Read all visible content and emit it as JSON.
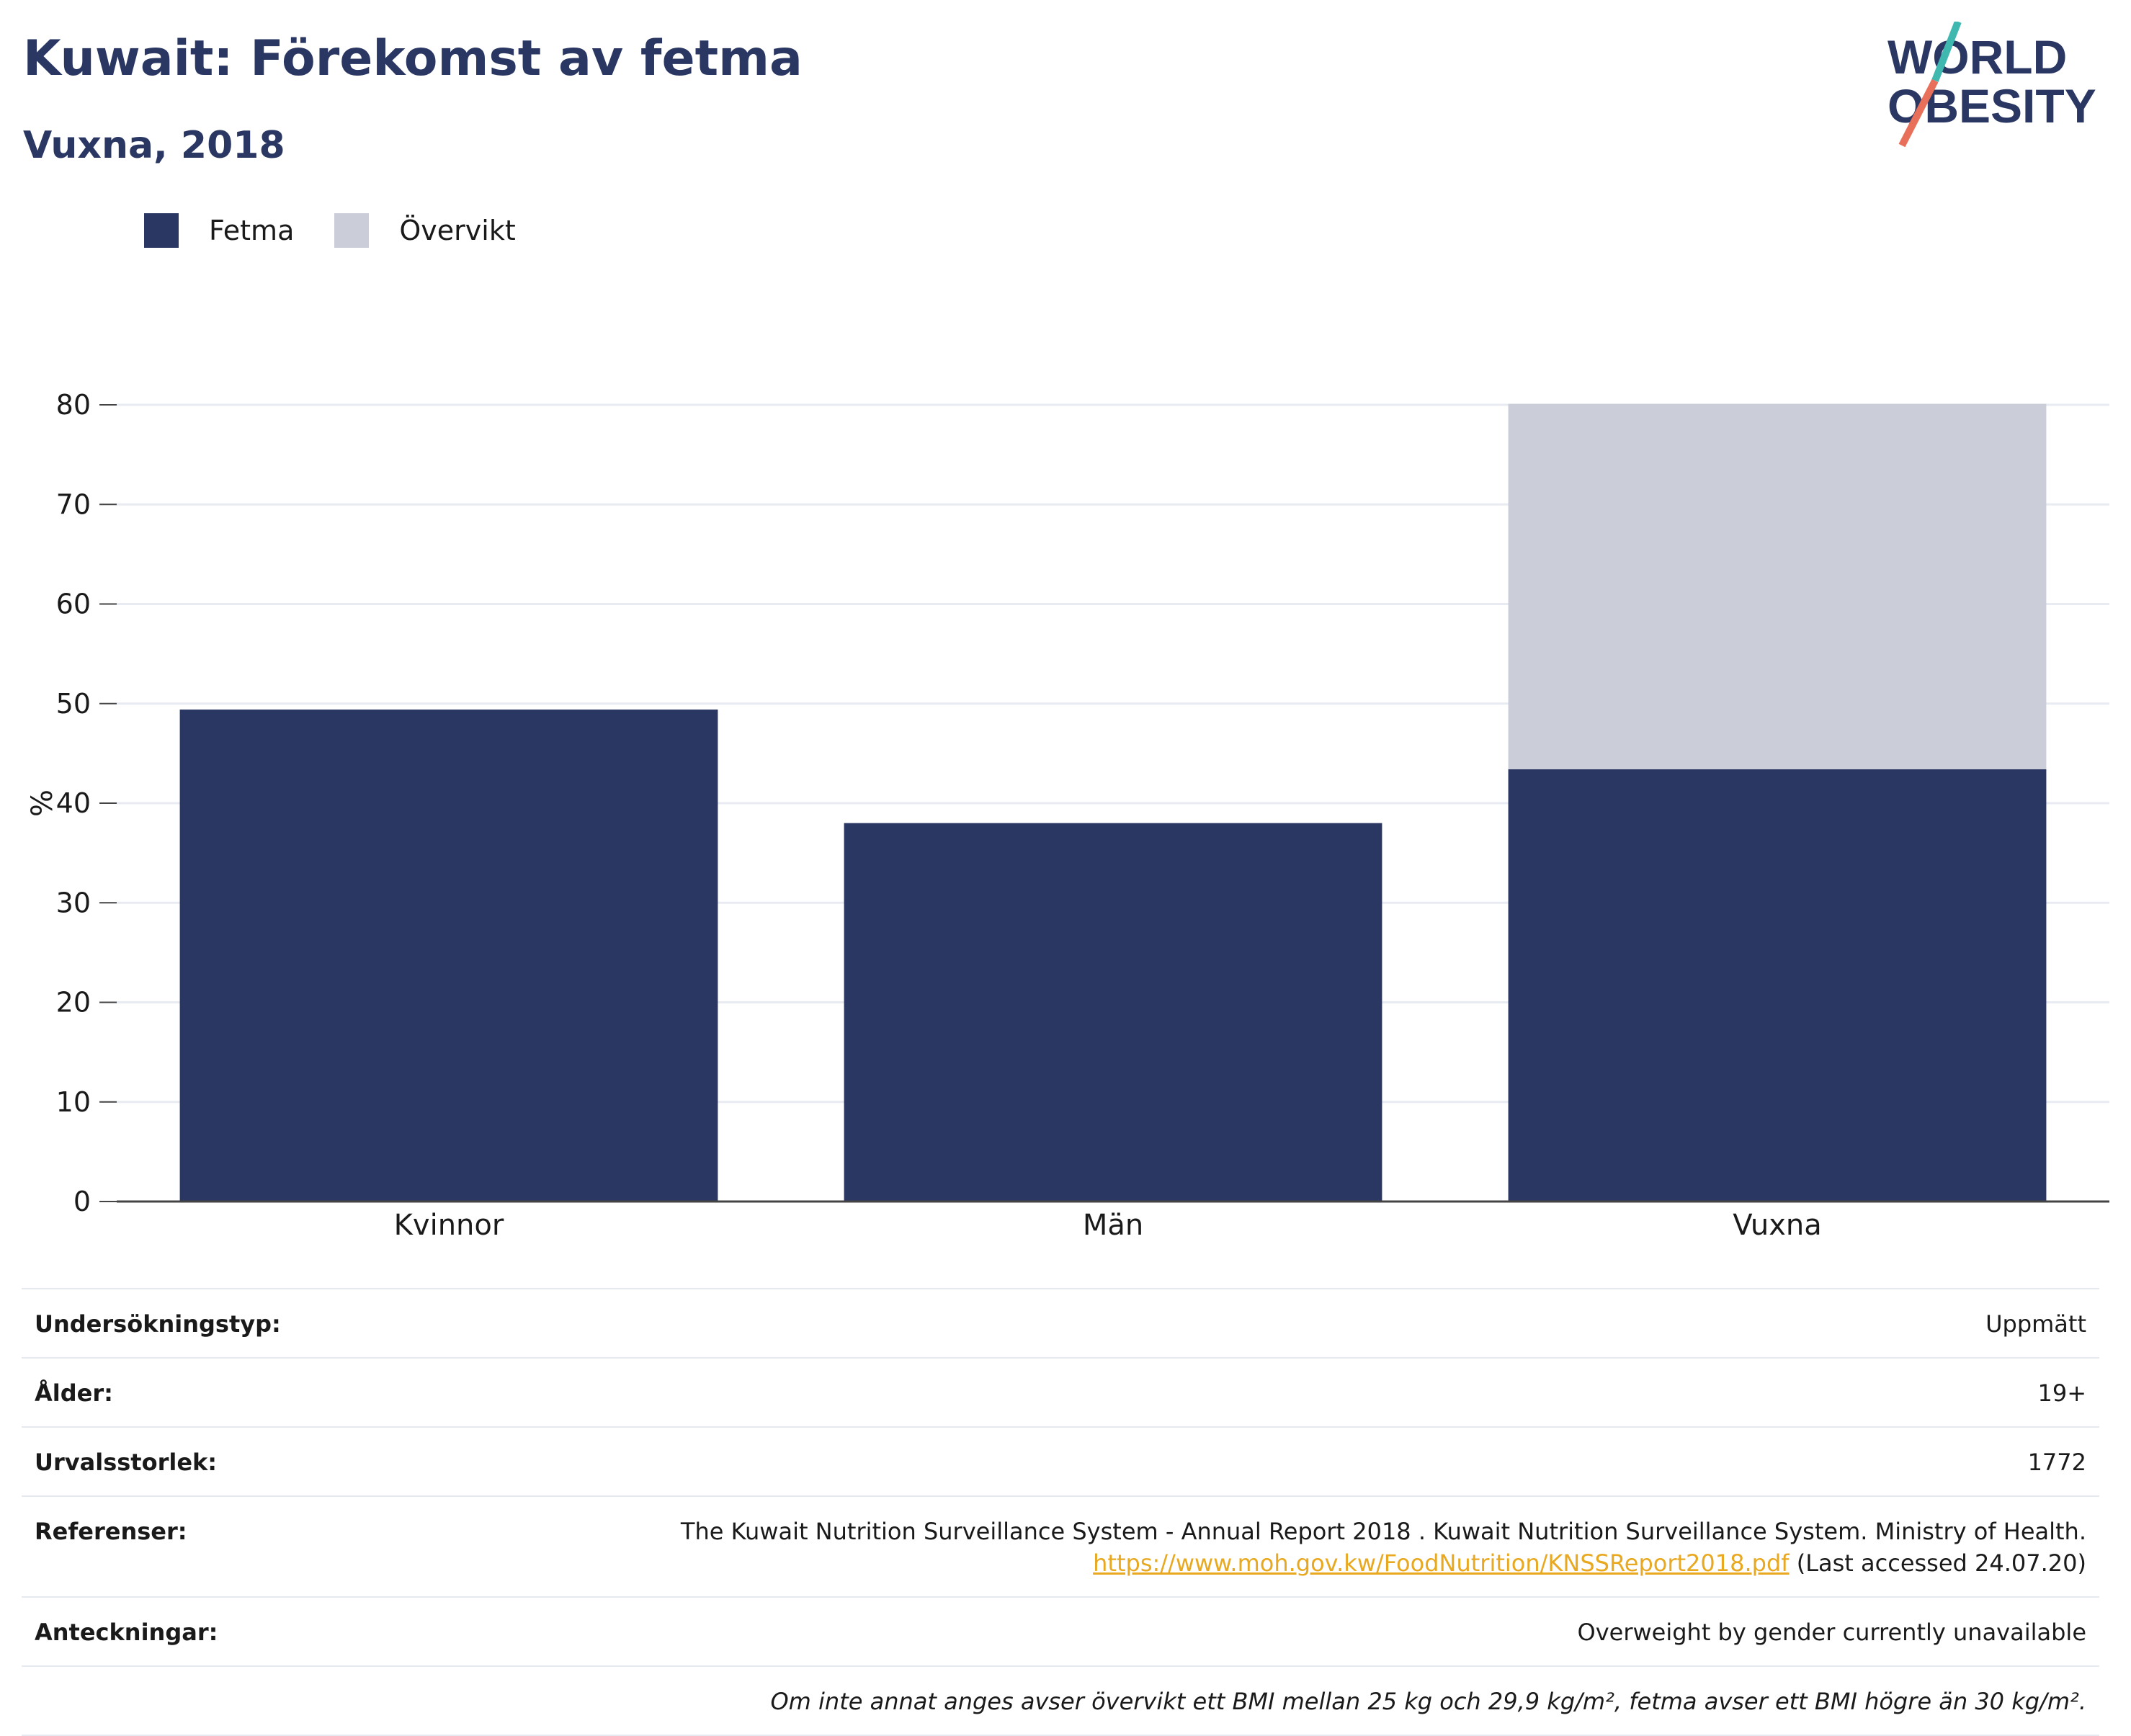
{
  "header": {
    "title": "Kuwait: Förekomst av fetma",
    "subtitle": "Vuxna, 2018",
    "logo_line1": "WORLD",
    "logo_line2": "OBESITY"
  },
  "colors": {
    "obesity": "#2a3763",
    "overweight": "#cbcdd8",
    "accent_teal": "#3fb8b0",
    "accent_red": "#e8705a"
  },
  "chart_data": {
    "type": "bar",
    "stacked": true,
    "categories": [
      "Kvinnor",
      "Män",
      "Vuxna"
    ],
    "series": [
      {
        "name": "Fetma",
        "values": [
          49.4,
          38.0,
          43.4
        ]
      },
      {
        "name": "Övervikt",
        "values": [
          null,
          null,
          36.7
        ]
      }
    ],
    "ylabel": "%",
    "ylim": [
      0,
      80
    ],
    "yticks": [
      0,
      10,
      20,
      30,
      40,
      50,
      60,
      70,
      80
    ],
    "grid": true,
    "legend": "top-left"
  },
  "meta": [
    {
      "label": "Undersökningstyp:",
      "value": "Uppmätt"
    },
    {
      "label": "Ålder:",
      "value": "19+"
    },
    {
      "label": "Urvalsstorlek:",
      "value": "1772"
    }
  ],
  "references": {
    "label": "Referenser:",
    "text": "The Kuwait Nutrition Surveillance System - Annual Report 2018 . Kuwait Nutrition Surveillance System. Ministry of Health.",
    "link": "https://www.moh.gov.kw/FoodNutrition/KNSSReport2018.pdf",
    "accessed": "(Last accessed 24.07.20)"
  },
  "notes": {
    "label": "Anteckningar:",
    "value": "Overweight by gender currently unavailable"
  },
  "footnote": "Om inte annat anges avser övervikt ett BMI mellan 25 kg och 29,9 kg/m², fetma avser ett BMI högre än 30 kg/m²."
}
